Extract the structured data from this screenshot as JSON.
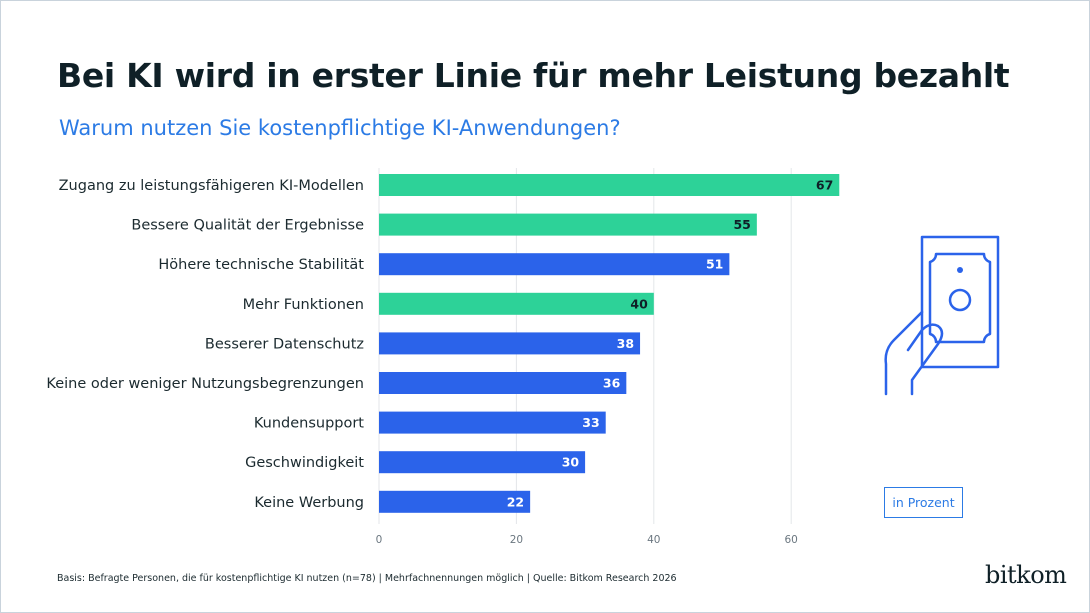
{
  "title": "Bei KI wird in erster Linie für mehr Leistung bezahlt",
  "subtitle": "Warum nutzen Sie kostenpflichtige KI-Anwendungen?",
  "unit_label": "in Prozent",
  "footnote": "Basis: Befragte Personen, die für kostenpflichtige KI nutzen (n=78) | Mehrfachnennungen möglich | Quelle: Bitkom Research 2026",
  "brand": "bitkom",
  "illustration_icon": "hand-holding-banknote-icon",
  "colors": {
    "green": "#2dd298",
    "blue": "#2b63ea",
    "title": "#0f2027",
    "accent": "#2c7be5",
    "grid": "#e3e6e9"
  },
  "chart_data": {
    "type": "bar",
    "orientation": "horizontal",
    "categories": [
      "Zugang zu leistungsfähigeren KI-Modellen",
      "Bessere Qualität der Ergebnisse",
      "Höhere technische Stabilität",
      "Mehr Funktionen",
      "Besserer Datenschutz",
      "Keine oder weniger Nutzungsbegrenzungen",
      "Kundensupport",
      "Geschwindigkeit",
      "Keine Werbung"
    ],
    "values": [
      67,
      55,
      51,
      40,
      38,
      36,
      33,
      30,
      22
    ],
    "bar_colors": [
      "green",
      "green",
      "blue",
      "green",
      "blue",
      "blue",
      "blue",
      "blue",
      "blue"
    ],
    "xlim": [
      0,
      70
    ],
    "xticks": [
      0,
      20,
      40,
      60
    ],
    "grid": true
  }
}
